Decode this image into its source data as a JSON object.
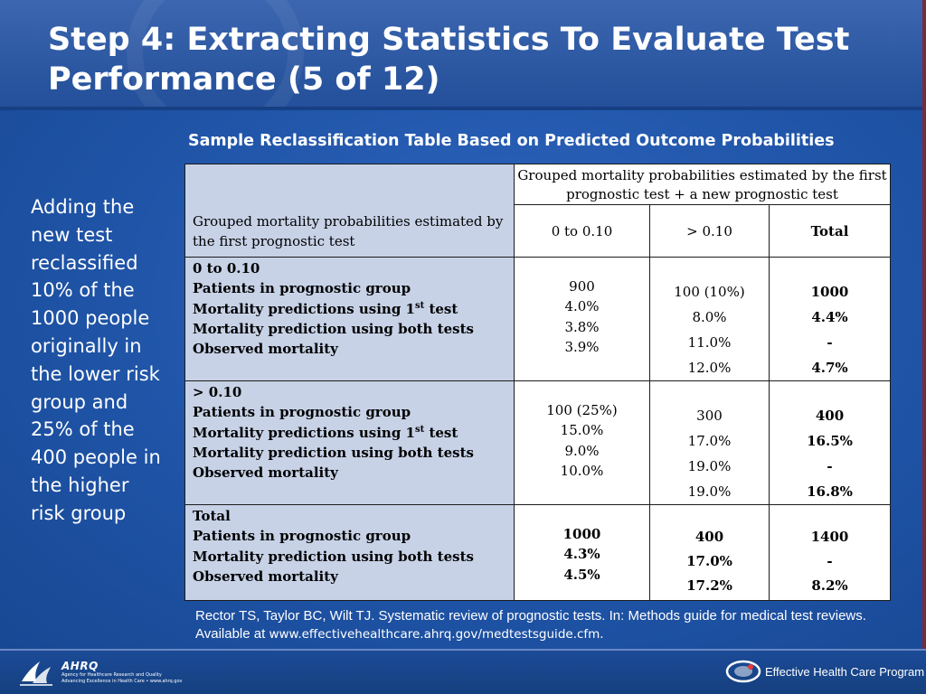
{
  "slide": {
    "title": "Step 4: Extracting Statistics To Evaluate Test Performance (5 of 12)",
    "side_text": "Adding the new test reclassified 10% of the 1000 people originally in the lower risk group and 25% of the 400 people in the higher risk group",
    "table_title": "Sample Reclassification Table Based on Predicted Outcome Probabilities"
  },
  "table": {
    "row_header_title": "Grouped mortality probabilities estimated by the first prognostic test",
    "col_group_title": "Grouped mortality probabilities estimated by the first prognostic test + a new prognostic test",
    "col_headers": [
      "0 to 0.10",
      "> 0.10",
      "Total"
    ],
    "rows": [
      {
        "group": "0 to 0.10",
        "labels": [
          "Patients in prognostic group",
          "Mortality predictions using 1",
          "st",
          " test",
          "Mortality prediction using both tests",
          "Observed mortality"
        ],
        "c1": [
          "900",
          "4.0%",
          "3.8%",
          "3.9%"
        ],
        "c2": [
          "100 (10%)",
          "8.0%",
          "11.0%",
          "12.0%"
        ],
        "c3": [
          "1000",
          "4.4%",
          "-",
          "4.7%"
        ]
      },
      {
        "group": "> 0.10",
        "labels": [
          "Patients in prognostic group",
          "Mortality predictions using 1",
          "st",
          " test",
          "Mortality prediction using both tests",
          "Observed mortality"
        ],
        "c1": [
          "100 (25%)",
          "15.0%",
          "9.0%",
          "10.0%"
        ],
        "c2": [
          "300",
          "17.0%",
          "19.0%",
          "19.0%"
        ],
        "c3": [
          "400",
          "16.5%",
          "-",
          "16.8%"
        ]
      },
      {
        "group": "Total",
        "labels": [
          "Patients in prognostic group",
          "Mortality prediction using both tests",
          "Observed mortality"
        ],
        "c1": [
          "1000",
          "4.3%",
          "4.5%"
        ],
        "c2": [
          "400",
          "17.0%",
          "17.2%"
        ],
        "c3": [
          "1400",
          "-",
          "8.2%"
        ]
      }
    ]
  },
  "citation": {
    "text": "Rector TS, Taylor BC, Wilt TJ. Systematic review of prognostic tests. In: Methods guide for medical test reviews. Available at ",
    "url": "www.effectivehealthcare.ahrq.gov/medtestsguide.cfm."
  },
  "footer": {
    "ahrq_name": "AHRQ",
    "ahrq_line1": "Agency for Healthcare Research and Quality",
    "ahrq_line2": "Advancing Excellence in Health Care • www.ahrq.gov",
    "ehc_text": "Effective Health Care Program"
  },
  "colors": {
    "background": "#1f54a7",
    "header": "#3c66b0",
    "table_label_fill": "#c7d2e7"
  }
}
